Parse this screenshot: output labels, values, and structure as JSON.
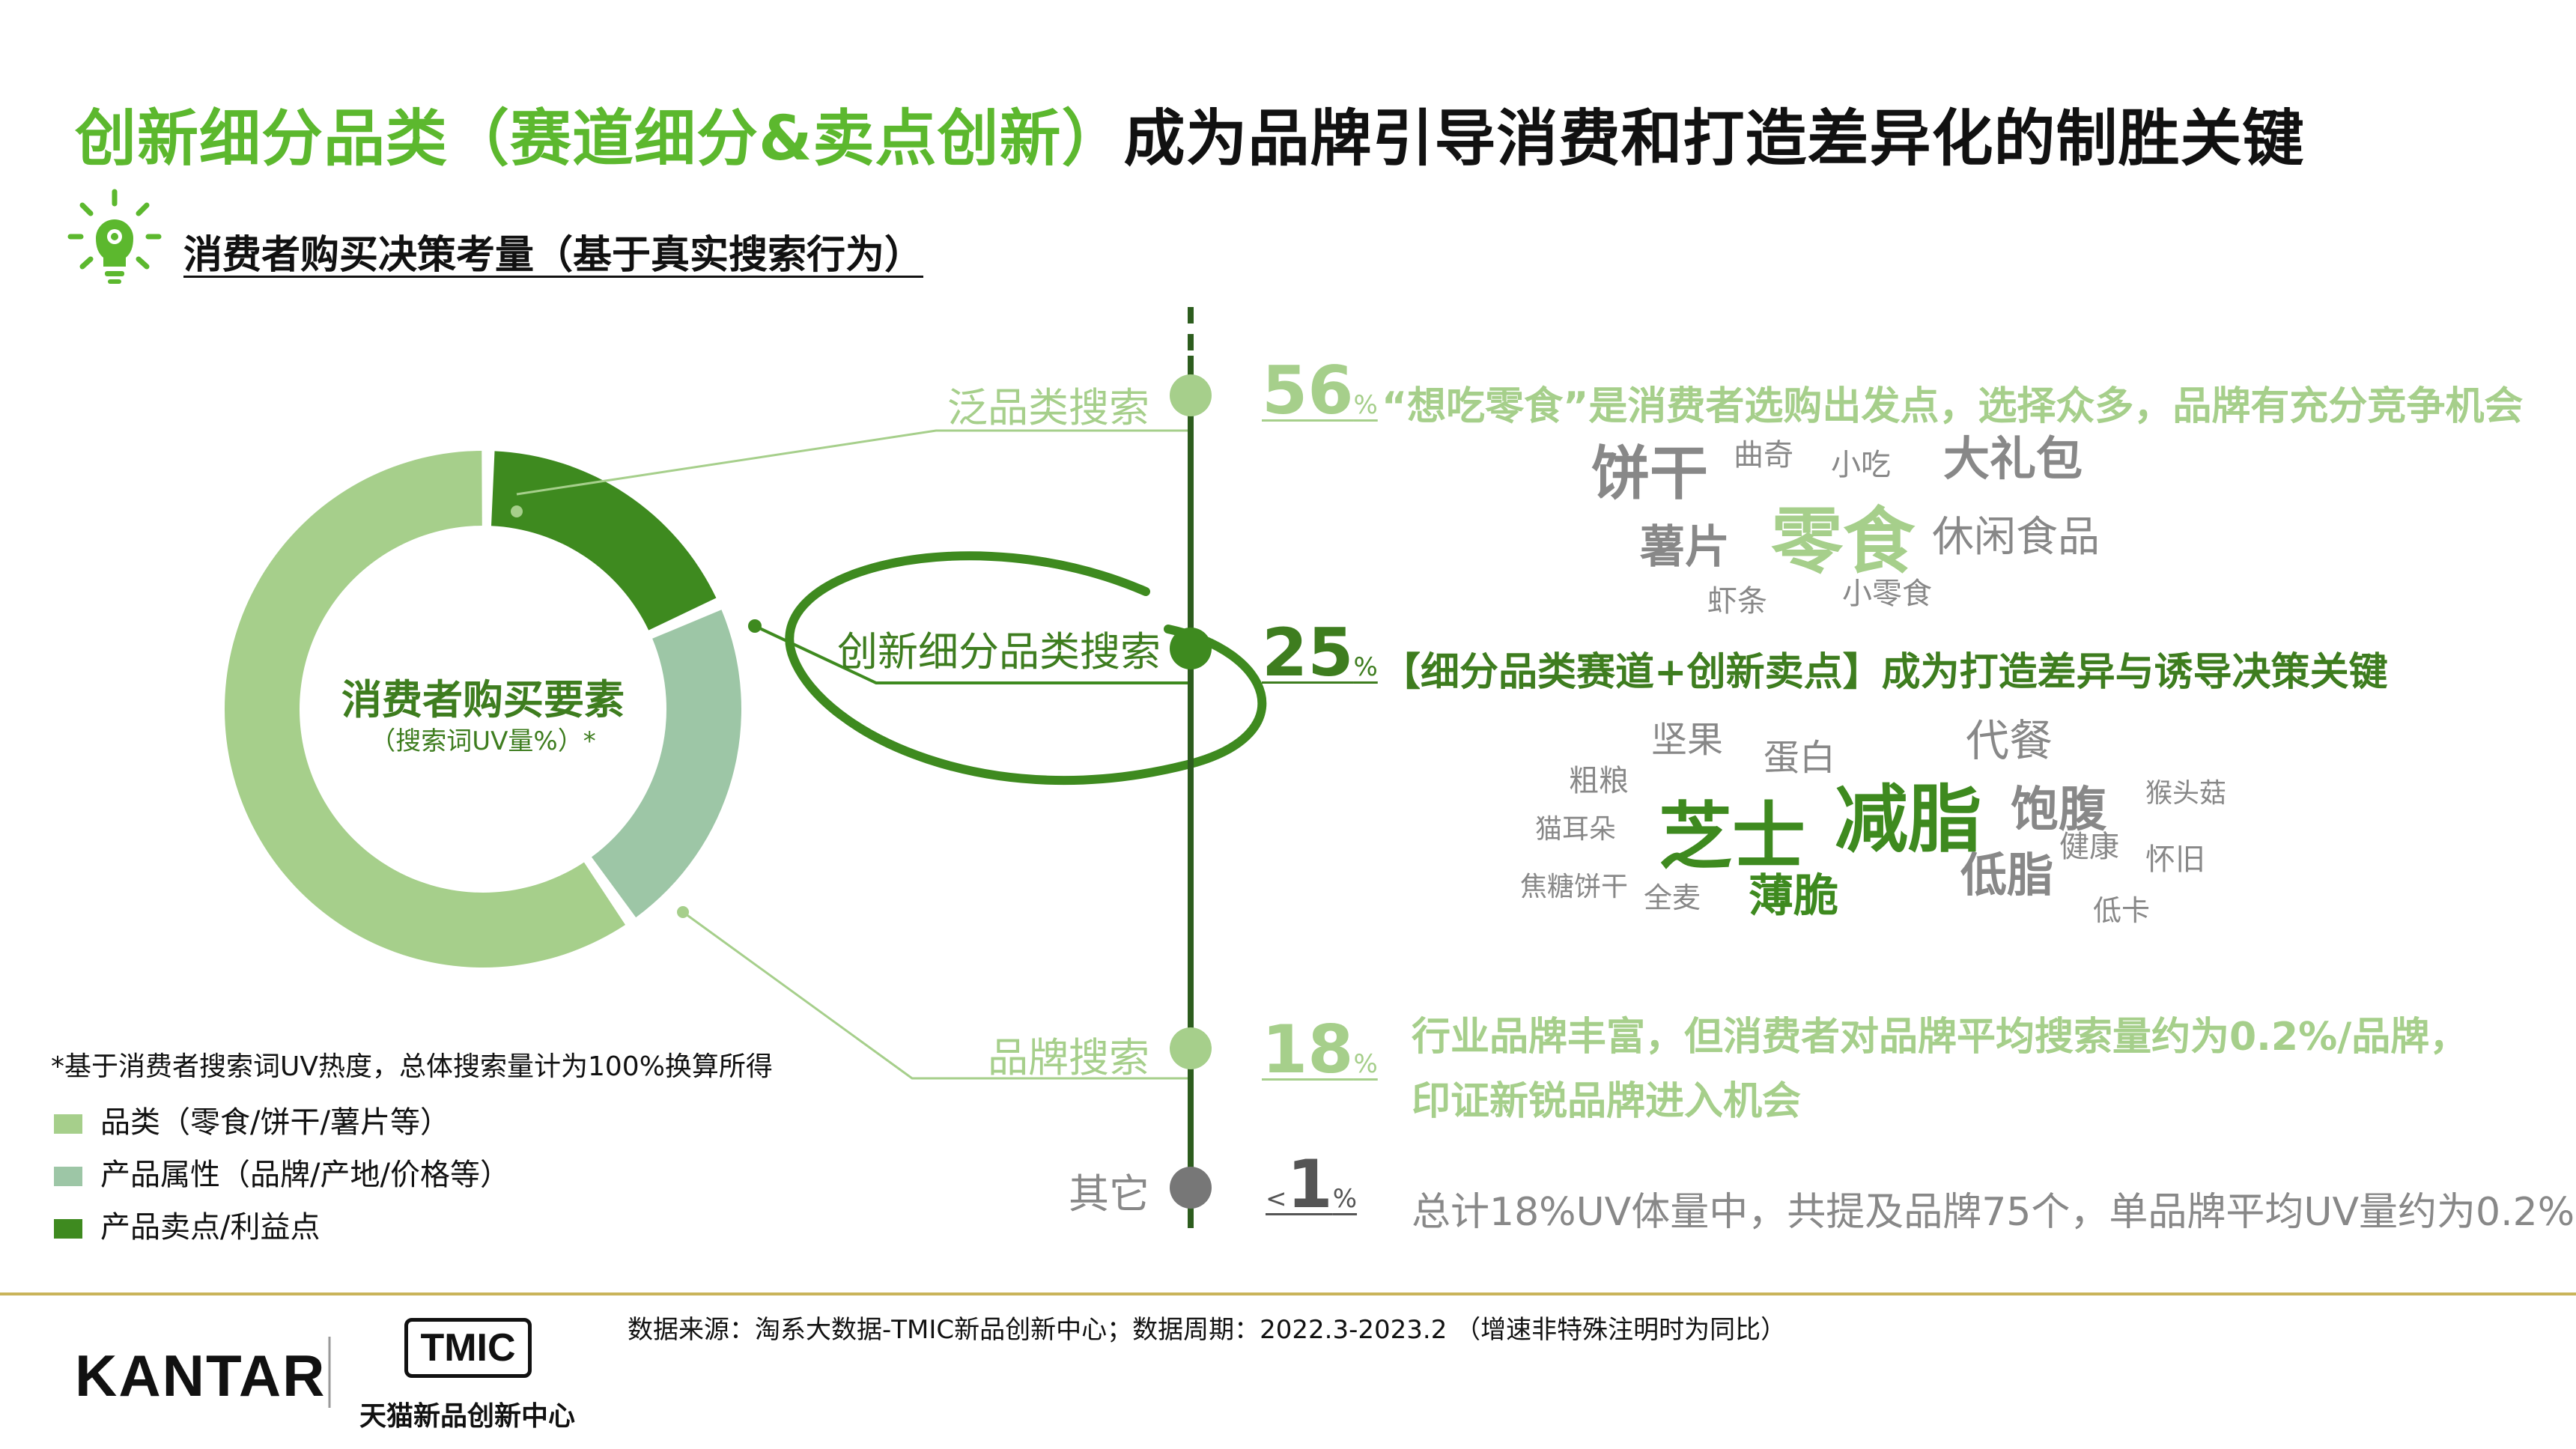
{
  "title": {
    "part_green": "创新细分品类（赛道细分&卖点创新）",
    "part_black": "成为品牌引导消费和打造差异化的制胜关键"
  },
  "subtitle": "消费者购买决策考量（基于真实搜索行为）",
  "donut": {
    "center_title": "消费者购买要素",
    "center_sub": "（搜索词UV量%）*"
  },
  "colors": {
    "light_green": "#a6cf8b",
    "mid_green": "#9dc6a6",
    "dark_green": "#3e8a1f",
    "gray": "#777777",
    "gold_rule": "#c9b45a"
  },
  "chart_data": {
    "type": "pie",
    "title": "消费者购买要素",
    "subtitle": "（搜索词UV量%）*",
    "slices": [
      {
        "name": "产品卖点/利益点",
        "value": 18,
        "color": "#3e8a1f"
      },
      {
        "name": "产品属性（品牌/产地/价格等）",
        "value": 22,
        "color": "#9dc6a6"
      },
      {
        "name": "品类（零食/饼干/薯片等）",
        "value": 60,
        "color": "#a6cf8b"
      }
    ]
  },
  "categories": [
    {
      "label": "泛品类搜索",
      "pct": "56",
      "desc": "“想吃零食”是消费者选购出发点，选择众多，品牌有充分竞争机会"
    },
    {
      "label": "创新细分品类搜索",
      "pct": "25",
      "desc": "【细分品类赛道+创新卖点】成为打造差异与诱导决策关键"
    },
    {
      "label": "品牌搜索",
      "pct": "18",
      "desc_line1": "行业品牌丰富，但消费者对品牌平均搜索量约为0.2%/品牌，",
      "desc_line2": "印证新锐品牌进入机会"
    },
    {
      "label": "其它",
      "pct_prefix": "<",
      "pct": "1",
      "desc": "总计18%UV体量中，共提及品牌75个，单品牌平均UV量约为0.2%"
    }
  ],
  "pct_unit": "%",
  "cloud1": [
    "饼干",
    "曲奇",
    "小吃",
    "大礼包",
    "薯片",
    "零食",
    "休闲食品",
    "虾条",
    "小零食"
  ],
  "cloud2": [
    "坚果",
    "蛋白",
    "代餐",
    "粗粮",
    "芝士",
    "减脂",
    "饱腹",
    "猴头菇",
    "猫耳朵",
    "健康",
    "怀旧",
    "低脂",
    "焦糖饼干",
    "全麦",
    "薄脆",
    "低卡"
  ],
  "footnote": "*基于消费者搜索词UV热度，总体搜索量计为100%换算所得",
  "legend": [
    {
      "label": "品类（零食/饼干/薯片等）",
      "color": "#a6cf8b"
    },
    {
      "label": "产品属性（品牌/产地/价格等）",
      "color": "#9dc6a6"
    },
    {
      "label": "产品卖点/利益点",
      "color": "#3e8a1f"
    }
  ],
  "source": "数据来源：淘系大数据-TMIC新品创新中心；数据周期：2022.3-2023.2 （增速非特殊注明时为同比）",
  "logos": {
    "kantar": "KANTAR",
    "tmic": "TMIC",
    "tmic_sub": "天猫新品创新中心"
  }
}
